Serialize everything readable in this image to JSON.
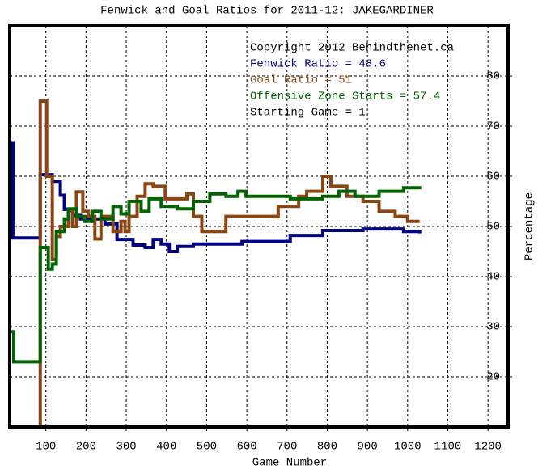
{
  "chart_data": {
    "type": "step",
    "title": "Fenwick and Goal Ratios for 2011-12: JAKEGARDINER",
    "x_label": "Game Number",
    "y_label": "Percentage",
    "annotations": [
      "Copyright 2012 Behindthenet.ca",
      "Starting Game = 1"
    ],
    "xlim": [
      10,
      1250
    ],
    "ylim": [
      10,
      90
    ],
    "xticks": [
      100,
      200,
      300,
      400,
      500,
      600,
      700,
      800,
      900,
      1000,
      1100,
      1200
    ],
    "yticks": [
      20,
      30,
      40,
      50,
      60,
      70,
      80
    ],
    "grid": true,
    "series": [
      {
        "name": "Fenwick Ratio = 48.6",
        "color": "#000080",
        "x": [
          14,
          18,
          80,
          86,
          116,
          136,
          146,
          166,
          186,
          247,
          277,
          297,
          317,
          347,
          367,
          387,
          407,
          427,
          467,
          588,
          668,
          708,
          789,
          889,
          949,
          990,
          1030
        ],
        "values": [
          66.7,
          47.7,
          47.7,
          60.3,
          59,
          56.2,
          53.4,
          52.2,
          51.5,
          50.5,
          47.4,
          47.4,
          46.3,
          45.8,
          47.4,
          46.5,
          45,
          46,
          46.5,
          47,
          47,
          48.2,
          49.2,
          49.5,
          49.5,
          49,
          48.6
        ]
      },
      {
        "name": "Goal Ratio = 51",
        "color": "#8b4513",
        "x": [
          80,
          86,
          102,
          116,
          126,
          136,
          156,
          166,
          176,
          192,
          206,
          222,
          237,
          267,
          287,
          297,
          307,
          327,
          347,
          367,
          397,
          437,
          451,
          467,
          488,
          528,
          548,
          668,
          678,
          729,
          749,
          789,
          809,
          849,
          889,
          929,
          969,
          1000,
          1030
        ],
        "values": [
          0,
          75,
          60,
          43.4,
          48,
          50,
          53,
          50,
          56.9,
          53,
          52,
          47.5,
          52,
          49,
          51,
          49,
          52,
          56,
          58.5,
          58,
          55.5,
          55.5,
          56.5,
          52,
          49,
          49,
          52,
          52,
          54,
          56,
          57,
          60,
          58,
          56,
          55,
          53,
          52,
          51,
          51
        ]
      },
      {
        "name": "Offensive Zone Starts = 57.4",
        "color": "#006400",
        "x": [
          14,
          20,
          80,
          86,
          106,
          116,
          126,
          146,
          156,
          176,
          196,
          216,
          237,
          267,
          287,
          307,
          337,
          357,
          387,
          427,
          467,
          508,
          548,
          578,
          598,
          708,
          789,
          829,
          869,
          929,
          990,
          1030
        ],
        "values": [
          29,
          23,
          23,
          45.8,
          41.5,
          42.5,
          49,
          51.5,
          53.5,
          52,
          51,
          53,
          51.5,
          54,
          52.5,
          55,
          53,
          55.5,
          54,
          53.5,
          55,
          56.5,
          56,
          57,
          56,
          55.5,
          56,
          57,
          56,
          57,
          57.7,
          57.4
        ]
      }
    ]
  }
}
